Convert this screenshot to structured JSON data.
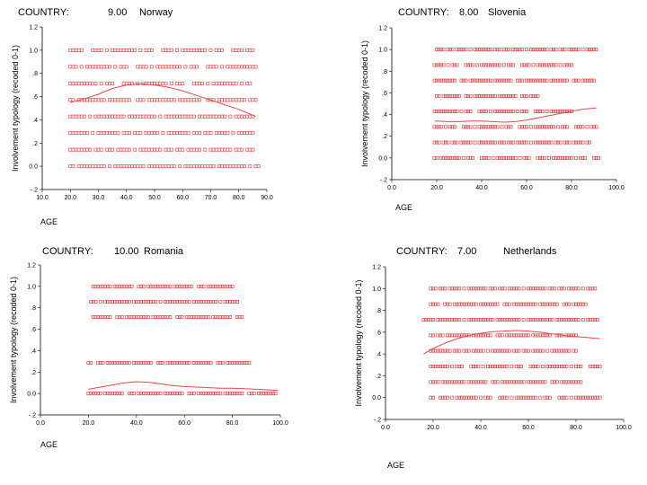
{
  "chart_data": [
    {
      "type": "scatter",
      "title_prefix": "COUNTRY:",
      "code": "9.00",
      "country": "Norway",
      "xlabel": "AGE",
      "ylabel": "Involvement typology (recoded 0-1)",
      "xlim": [
        10,
        90
      ],
      "ylim": [
        -0.2,
        1.2
      ],
      "xticks": [
        10,
        20,
        30,
        40,
        50,
        60,
        70,
        80,
        90
      ],
      "xtick_labels": [
        "10.0",
        "20.0",
        "30.0",
        "40.0",
        "50.0",
        "60.0",
        "70.0",
        "80.0",
        "90.0"
      ],
      "yticks": [
        -0.2,
        0,
        0.2,
        0.4,
        0.6,
        0.8,
        1.0,
        1.2
      ],
      "ytick_labels": [
        "-.2",
        "0.0",
        ".2",
        ".4",
        ".6",
        ".8",
        "1.0",
        "1.2"
      ],
      "levels": [
        {
          "y": 1.0,
          "xmin": 20,
          "xmax": 85
        },
        {
          "y": 0.857,
          "xmin": 20,
          "xmax": 86
        },
        {
          "y": 0.714,
          "xmin": 20,
          "xmax": 84
        },
        {
          "y": 0.571,
          "xmin": 20,
          "xmax": 86
        },
        {
          "y": 0.429,
          "xmin": 20,
          "xmax": 85
        },
        {
          "y": 0.286,
          "xmin": 20,
          "xmax": 85
        },
        {
          "y": 0.143,
          "xmin": 20,
          "xmax": 85
        },
        {
          "y": 0.0,
          "xmin": 20,
          "xmax": 87
        }
      ],
      "fit_line": {
        "x": [
          20,
          25,
          30,
          35,
          40,
          45,
          50,
          55,
          60,
          65,
          70,
          75,
          80,
          86
        ],
        "y": [
          0.55,
          0.58,
          0.62,
          0.67,
          0.7,
          0.71,
          0.7,
          0.68,
          0.65,
          0.61,
          0.57,
          0.53,
          0.49,
          0.43
        ]
      },
      "color": "#e8474b"
    },
    {
      "type": "scatter",
      "title_prefix": "COUNTRY:",
      "code": "8.00",
      "country": "Slovenia",
      "xlabel": "AGE",
      "ylabel": "Involvement typology (recoded 0-1)",
      "xlim": [
        0,
        100
      ],
      "ylim": [
        -0.2,
        1.2
      ],
      "xticks": [
        0,
        20,
        40,
        60,
        80,
        100
      ],
      "xtick_labels": [
        "0.0",
        "20.0",
        "40.0",
        "60.0",
        "80.0",
        "100.0"
      ],
      "yticks": [
        -0.2,
        0,
        0.2,
        0.4,
        0.6,
        0.8,
        1.0,
        1.2
      ],
      "ytick_labels": [
        "-.2",
        "0.0",
        ".2",
        ".4",
        ".6",
        ".8",
        "1.0",
        "1.2"
      ],
      "levels": [
        {
          "y": 1.0,
          "xmin": 20,
          "xmax": 91
        },
        {
          "y": 0.857,
          "xmin": 19,
          "xmax": 80
        },
        {
          "y": 0.714,
          "xmin": 19,
          "xmax": 90
        },
        {
          "y": 0.571,
          "xmin": 20,
          "xmax": 65
        },
        {
          "y": 0.429,
          "xmin": 19,
          "xmax": 80
        },
        {
          "y": 0.286,
          "xmin": 19,
          "xmax": 91
        },
        {
          "y": 0.143,
          "xmin": 19,
          "xmax": 88
        },
        {
          "y": 0.0,
          "xmin": 19,
          "xmax": 92
        }
      ],
      "fit_line": {
        "x": [
          19,
          25,
          30,
          35,
          40,
          45,
          50,
          55,
          60,
          65,
          70,
          75,
          80,
          85,
          91
        ],
        "y": [
          0.34,
          0.335,
          0.335,
          0.34,
          0.34,
          0.335,
          0.33,
          0.335,
          0.35,
          0.37,
          0.39,
          0.41,
          0.43,
          0.45,
          0.46
        ]
      },
      "color": "#e8474b"
    },
    {
      "type": "scatter",
      "title_prefix": "COUNTRY:",
      "code": "10.00",
      "country": "Romania",
      "xlabel": "AGE",
      "ylabel": "Involvement typology (recoded 0-1)",
      "xlim": [
        0,
        100
      ],
      "ylim": [
        -0.2,
        1.2
      ],
      "xticks": [
        0,
        20,
        40,
        60,
        80,
        100
      ],
      "xtick_labels": [
        "0.0",
        "20.0",
        "40.0",
        "60.0",
        "80.0",
        "100.0"
      ],
      "yticks": [
        -0.2,
        0,
        0.2,
        0.4,
        0.6,
        0.8,
        1.0,
        1.2
      ],
      "ytick_labels": [
        "-.2",
        "0.0",
        ".2",
        ".4",
        ".6",
        ".8",
        "1.0",
        "1.2"
      ],
      "levels": [
        {
          "y": 1.0,
          "xmin": 22,
          "xmax": 80
        },
        {
          "y": 0.857,
          "xmin": 21,
          "xmax": 82
        },
        {
          "y": 0.714,
          "xmin": 22,
          "xmax": 84
        },
        {
          "y": 0.286,
          "xmin": 20,
          "xmax": 87
        },
        {
          "y": 0.0,
          "xmin": 20,
          "xmax": 98
        }
      ],
      "fit_line": {
        "x": [
          20,
          25,
          30,
          35,
          40,
          45,
          50,
          55,
          60,
          65,
          70,
          75,
          80,
          85,
          90,
          95,
          99
        ],
        "y": [
          0.04,
          0.06,
          0.08,
          0.1,
          0.11,
          0.105,
          0.09,
          0.075,
          0.065,
          0.06,
          0.055,
          0.05,
          0.05,
          0.045,
          0.04,
          0.035,
          0.03
        ]
      },
      "color": "#e8474b"
    },
    {
      "type": "scatter",
      "title_prefix": "COUNTRY:",
      "code": "7.00",
      "country": "Netherlands",
      "xlabel": "AGE",
      "ylabel": "Involvement typology (recoded 0-1)",
      "xlim": [
        0,
        100
      ],
      "ylim": [
        -0.2,
        1.2
      ],
      "xticks": [
        0,
        20,
        40,
        60,
        80,
        100
      ],
      "xtick_labels": [
        "0.0",
        "20.0",
        "40.0",
        "60.0",
        "80.0",
        "100.0"
      ],
      "yticks": [
        -0.2,
        0,
        0.2,
        0.4,
        0.6,
        0.8,
        1.0,
        1.2
      ],
      "ytick_labels": [
        "-.2",
        "0.0",
        ".2",
        ".4",
        ".6",
        ".8",
        "1.0",
        "1.2"
      ],
      "levels": [
        {
          "y": 1.0,
          "xmin": 19,
          "xmax": 88
        },
        {
          "y": 0.857,
          "xmin": 19,
          "xmax": 84
        },
        {
          "y": 0.714,
          "xmin": 16,
          "xmax": 89
        },
        {
          "y": 0.571,
          "xmin": 19,
          "xmax": 80
        },
        {
          "y": 0.429,
          "xmin": 19,
          "xmax": 80
        },
        {
          "y": 0.286,
          "xmin": 19,
          "xmax": 90
        },
        {
          "y": 0.143,
          "xmin": 19,
          "xmax": 82
        },
        {
          "y": 0.0,
          "xmin": 19,
          "xmax": 90
        }
      ],
      "fit_line": {
        "x": [
          16,
          20,
          25,
          30,
          35,
          40,
          45,
          50,
          55,
          60,
          65,
          70,
          75,
          80,
          85,
          90
        ],
        "y": [
          0.4,
          0.45,
          0.5,
          0.54,
          0.57,
          0.59,
          0.605,
          0.61,
          0.615,
          0.61,
          0.6,
          0.585,
          0.57,
          0.56,
          0.55,
          0.54
        ]
      },
      "color": "#e8474b"
    }
  ]
}
